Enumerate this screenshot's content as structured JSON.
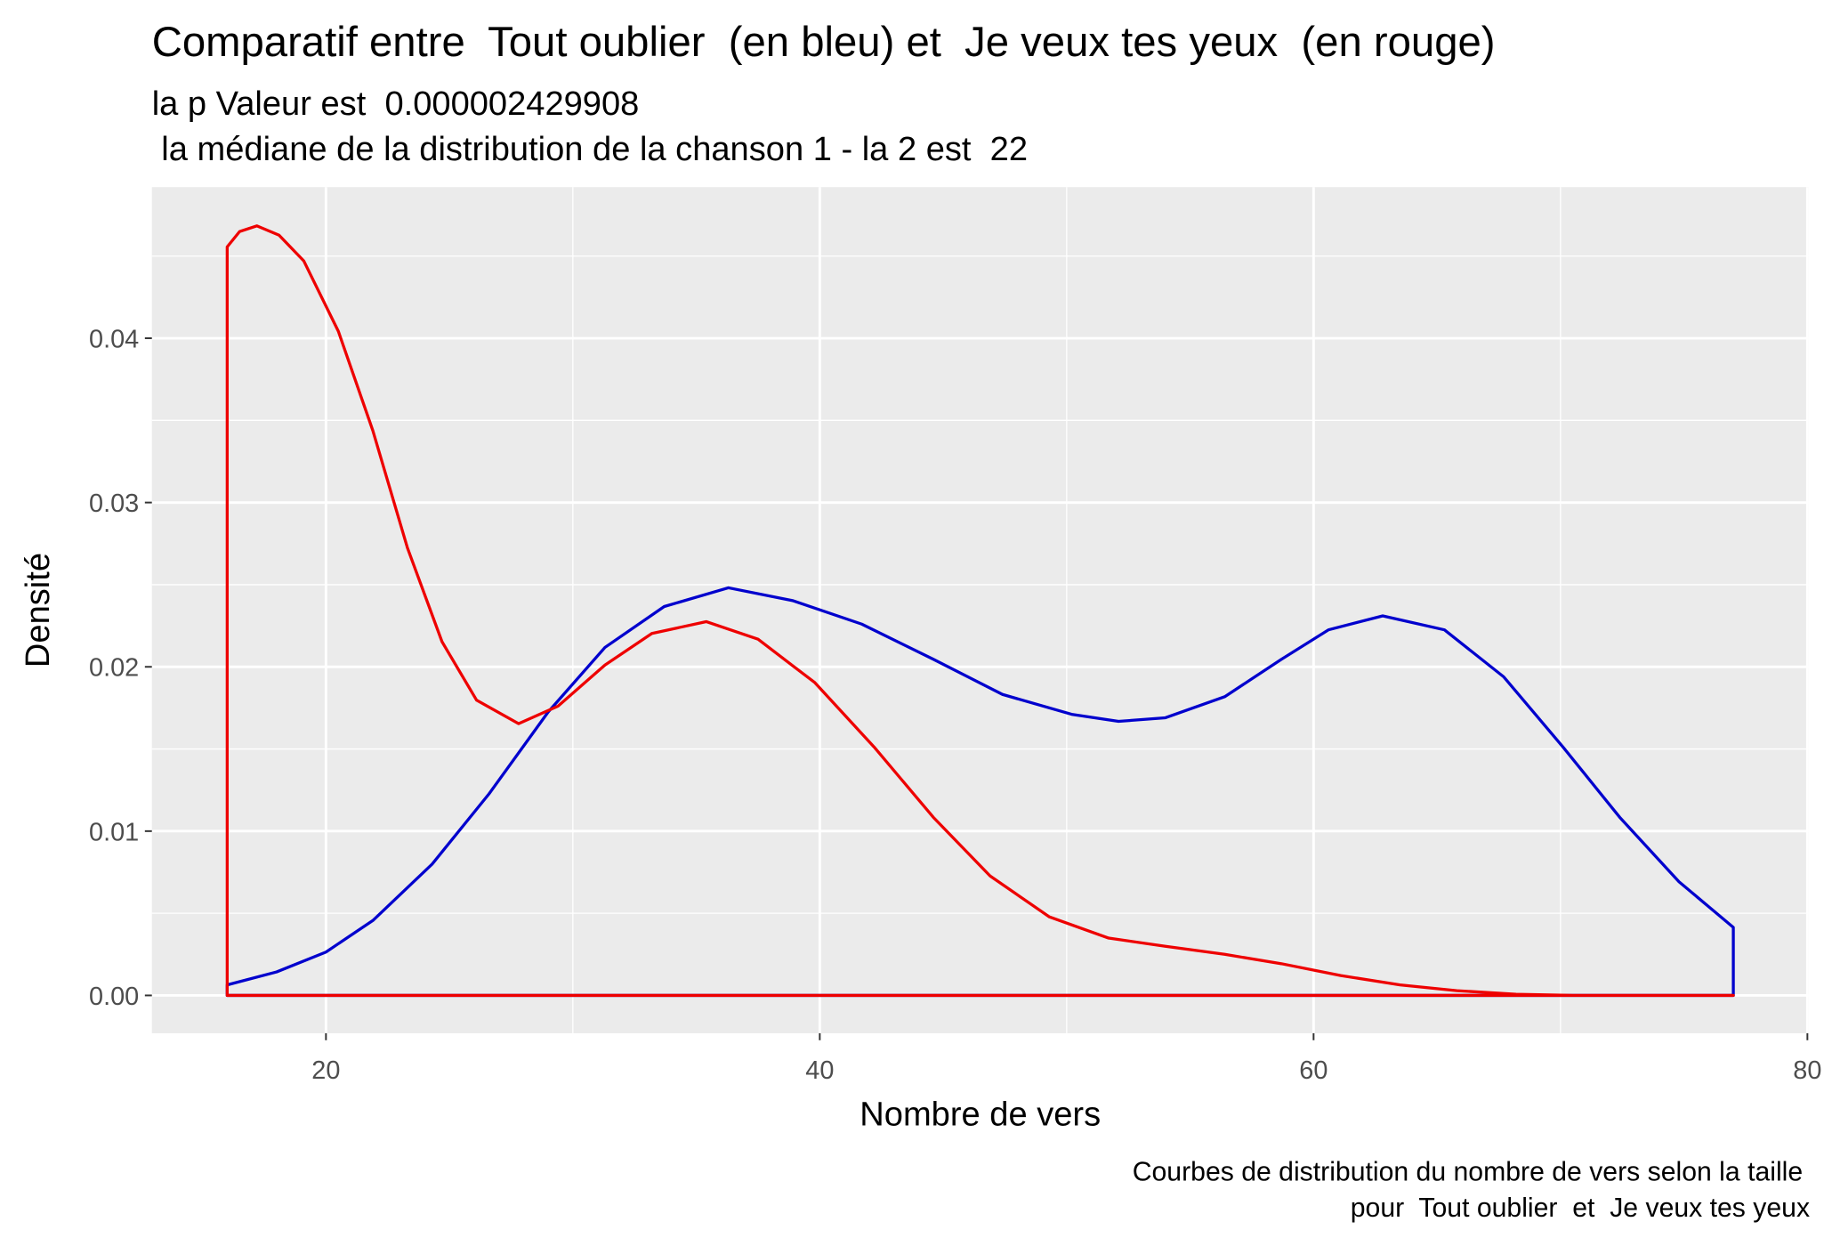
{
  "chart_data": {
    "type": "density",
    "title": "Comparatif entre  Tout oublier  (en bleu) et  Je veux tes yeux  (en rouge)",
    "subtitle": [
      "la p Valeur est  0.000002429908",
      " la médiane de la distribution de la chanson 1 - la 2 est  22"
    ],
    "caption": [
      "Courbes de distribution du nombre de vers selon la taille",
      "pour  Tout oublier  et  Je veux tes yeux"
    ],
    "xlabel": "Nombre de vers",
    "ylabel": "Densité",
    "xlim": [
      12.95,
      80.05
    ],
    "ylim": [
      -0.0023,
      0.0492
    ],
    "xticks": [
      20,
      40,
      60,
      80
    ],
    "yticks": [
      {
        "value": 0,
        "label": "0.00"
      },
      {
        "value": 0.01,
        "label": "0.01"
      },
      {
        "value": 0.02,
        "label": "0.02"
      },
      {
        "value": 0.03,
        "label": "0.03"
      },
      {
        "value": 0.04,
        "label": "0.04"
      }
    ],
    "xminor": [
      30,
      50,
      70
    ],
    "yminor": [
      0.005,
      0.015,
      0.025,
      0.035,
      0.045
    ],
    "grid": true,
    "series": [
      {
        "color": "#0000cd",
        "x": [
          16.0,
          18.0,
          20.0,
          21.9,
          24.3,
          26.6,
          29.0,
          31.3,
          33.7,
          36.3,
          38.9,
          41.7,
          44.6,
          47.4,
          50.2,
          52.1,
          54.0,
          56.4,
          58.7,
          60.6,
          62.8,
          65.3,
          67.7,
          70.1,
          72.4,
          74.8,
          77.0
        ],
        "values": [
          0.00064,
          0.00143,
          0.00264,
          0.00456,
          0.00799,
          0.01226,
          0.01725,
          0.02118,
          0.02367,
          0.02481,
          0.02403,
          0.0226,
          0.02046,
          0.01832,
          0.01711,
          0.01668,
          0.0169,
          0.01818,
          0.02046,
          0.02225,
          0.0231,
          0.02225,
          0.01939,
          0.01512,
          0.01084,
          0.00692,
          0.00414
        ]
      },
      {
        "color": "#ee0000",
        "x": [
          16.0,
          16.5,
          17.2,
          18.1,
          19.1,
          20.5,
          21.9,
          23.3,
          24.7,
          26.1,
          27.8,
          29.4,
          31.3,
          33.2,
          35.4,
          37.5,
          39.8,
          42.2,
          44.6,
          46.9,
          49.3,
          51.7,
          54.0,
          56.4,
          58.7,
          61.1,
          63.5,
          65.8,
          68.2,
          70.5,
          77.0
        ],
        "values": [
          0.04556,
          0.04649,
          0.04684,
          0.04627,
          0.04471,
          0.04043,
          0.03437,
          0.02724,
          0.02153,
          0.01797,
          0.01654,
          0.01761,
          0.02011,
          0.02203,
          0.02275,
          0.02168,
          0.01904,
          0.01512,
          0.01084,
          0.00727,
          0.00478,
          0.00349,
          0.00299,
          0.0025,
          0.00193,
          0.00121,
          0.00064,
          0.00029,
          7e-05,
          0,
          0
        ]
      }
    ]
  }
}
